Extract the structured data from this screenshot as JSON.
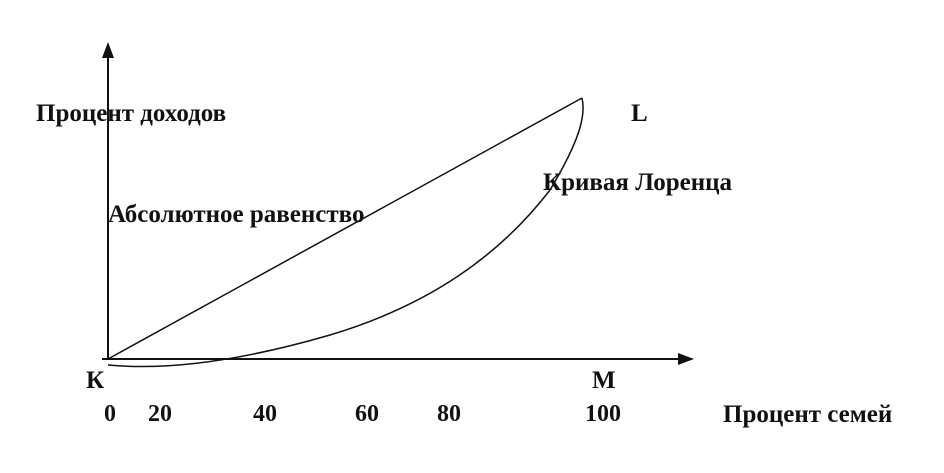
{
  "labels": {
    "y_axis": "Процент доходов",
    "x_axis": "Процент семей",
    "equality_line": "Абсолютное равенство",
    "lorenz_curve": "Кривая Лоренца",
    "origin_point": "К",
    "point_l": "L",
    "point_m": "M"
  },
  "x_ticks": [
    "0",
    "20",
    "40",
    "60",
    "80",
    "100"
  ],
  "colors": {
    "line": "#111111",
    "background": "#ffffff"
  }
}
